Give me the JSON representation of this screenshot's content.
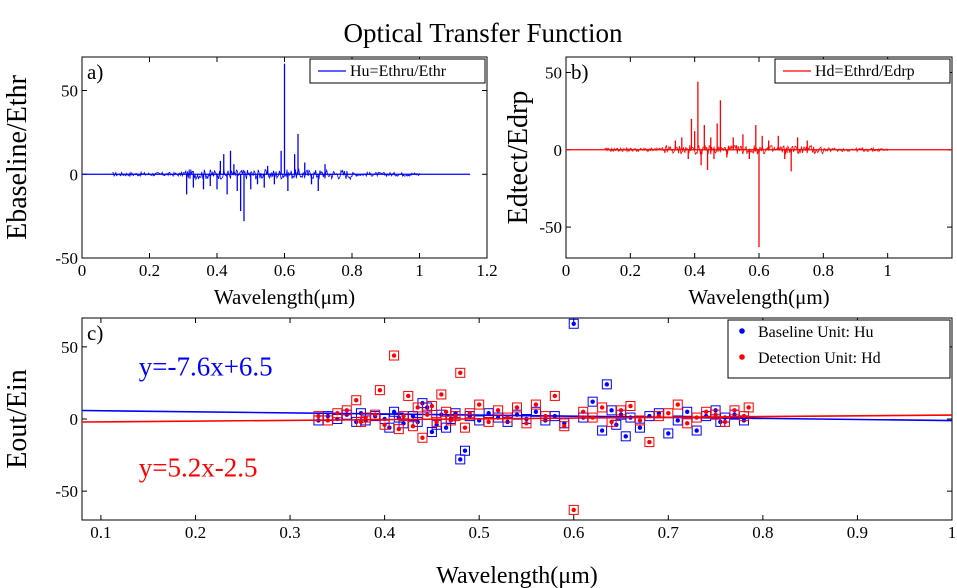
{
  "figure_title": "Optical Transfer Function",
  "chart_data": [
    {
      "id": "a",
      "type": "line",
      "panel_label": "a)",
      "xlabel": "Wavelength(μm)",
      "ylabel": "Ebaseline/Ethr",
      "xlim": [
        0,
        1.2
      ],
      "ylim": [
        -50,
        70
      ],
      "xticks": [
        "0",
        "0.2",
        "0.4",
        "0.6",
        "0.8",
        "1",
        "1.2"
      ],
      "yticks": [
        "-50",
        "0",
        "50"
      ],
      "legend": {
        "position": "top-right",
        "entries": [
          "Hu=Ethru/Ethr"
        ]
      },
      "color": "#0000ff",
      "baseline_x_range": [
        0,
        1.15
      ],
      "noise_x_range": [
        0.09,
        1.0
      ],
      "spikes": [
        {
          "x": 0.31,
          "y": -12
        },
        {
          "x": 0.33,
          "y": -8
        },
        {
          "x": 0.36,
          "y": -9
        },
        {
          "x": 0.38,
          "y": -7
        },
        {
          "x": 0.4,
          "y": -9
        },
        {
          "x": 0.41,
          "y": 8
        },
        {
          "x": 0.42,
          "y": 12
        },
        {
          "x": 0.43,
          "y": -12
        },
        {
          "x": 0.44,
          "y": 14
        },
        {
          "x": 0.45,
          "y": 6
        },
        {
          "x": 0.46,
          "y": -10
        },
        {
          "x": 0.47,
          "y": -22
        },
        {
          "x": 0.48,
          "y": -28
        },
        {
          "x": 0.5,
          "y": -9
        },
        {
          "x": 0.52,
          "y": -6
        },
        {
          "x": 0.54,
          "y": -8
        },
        {
          "x": 0.55,
          "y": 5
        },
        {
          "x": 0.57,
          "y": -6
        },
        {
          "x": 0.59,
          "y": 14
        },
        {
          "x": 0.6,
          "y": 66
        },
        {
          "x": 0.61,
          "y": -10
        },
        {
          "x": 0.63,
          "y": 12
        },
        {
          "x": 0.64,
          "y": 24
        },
        {
          "x": 0.66,
          "y": 7
        },
        {
          "x": 0.68,
          "y": -6
        },
        {
          "x": 0.7,
          "y": -10
        },
        {
          "x": 0.72,
          "y": 6
        }
      ]
    },
    {
      "id": "b",
      "type": "line",
      "panel_label": "b)",
      "xlabel": "Wavelength(μm)",
      "ylabel": "Edtect/Edrp",
      "xlim": [
        0,
        1.2
      ],
      "ylim": [
        -70,
        60
      ],
      "xticks": [
        "0",
        "0.2",
        "0.4",
        "0.6",
        "0.8",
        "1"
      ],
      "yticks": [
        "-50",
        "0",
        "50"
      ],
      "legend": {
        "position": "top-right",
        "entries": [
          "Hd=Ethrd/Edrp"
        ]
      },
      "color": "#ff0000",
      "baseline_x_range": [
        0,
        1.2
      ],
      "noise_x_range": [
        0.12,
        1.0
      ],
      "spikes": [
        {
          "x": 0.34,
          "y": 6
        },
        {
          "x": 0.36,
          "y": 8
        },
        {
          "x": 0.38,
          "y": -6
        },
        {
          "x": 0.39,
          "y": 20
        },
        {
          "x": 0.4,
          "y": 12
        },
        {
          "x": 0.41,
          "y": 44
        },
        {
          "x": 0.42,
          "y": -10
        },
        {
          "x": 0.43,
          "y": 16
        },
        {
          "x": 0.44,
          "y": -13
        },
        {
          "x": 0.45,
          "y": 8
        },
        {
          "x": 0.46,
          "y": -6
        },
        {
          "x": 0.47,
          "y": 17
        },
        {
          "x": 0.48,
          "y": 32
        },
        {
          "x": 0.5,
          "y": -5
        },
        {
          "x": 0.52,
          "y": 8
        },
        {
          "x": 0.55,
          "y": 10
        },
        {
          "x": 0.57,
          "y": -6
        },
        {
          "x": 0.59,
          "y": 16
        },
        {
          "x": 0.6,
          "y": -63
        },
        {
          "x": 0.61,
          "y": 9
        },
        {
          "x": 0.63,
          "y": 6
        },
        {
          "x": 0.66,
          "y": 9
        },
        {
          "x": 0.68,
          "y": -6
        },
        {
          "x": 0.7,
          "y": -14
        },
        {
          "x": 0.72,
          "y": 8
        },
        {
          "x": 0.75,
          "y": 6
        }
      ]
    },
    {
      "id": "c",
      "type": "scatter",
      "panel_label": "c)",
      "xlabel": "Wavelength(μm)",
      "ylabel": "Eout/Ein",
      "xlim": [
        0.08,
        1.0
      ],
      "ylim": [
        -70,
        70
      ],
      "xticks": [
        "0.1",
        "0.2",
        "0.3",
        "0.4",
        "0.5",
        "0.6",
        "0.7",
        "0.8",
        "0.9",
        "1"
      ],
      "yticks": [
        "-50",
        "0",
        "50"
      ],
      "legend": {
        "position": "top-right",
        "entries": [
          "Baseline Unit:   Hu",
          "Detection Unit:   Hd"
        ]
      },
      "series": [
        {
          "name": "Baseline Unit:   Hu",
          "color": "#0000ff",
          "fit": {
            "slope": -7.6,
            "intercept": 6.5,
            "label": "y=-7.6x+6.5"
          },
          "points": [
            {
              "x": 0.33,
              "y": -1
            },
            {
              "x": 0.34,
              "y": 2
            },
            {
              "x": 0.35,
              "y": 0
            },
            {
              "x": 0.36,
              "y": 3
            },
            {
              "x": 0.37,
              "y": -2
            },
            {
              "x": 0.375,
              "y": 4
            },
            {
              "x": 0.38,
              "y": -1
            },
            {
              "x": 0.39,
              "y": 2
            },
            {
              "x": 0.4,
              "y": 0
            },
            {
              "x": 0.405,
              "y": -6
            },
            {
              "x": 0.41,
              "y": 5
            },
            {
              "x": 0.415,
              "y": 1
            },
            {
              "x": 0.42,
              "y": -3
            },
            {
              "x": 0.43,
              "y": 2
            },
            {
              "x": 0.435,
              "y": -2
            },
            {
              "x": 0.44,
              "y": 11
            },
            {
              "x": 0.445,
              "y": 8
            },
            {
              "x": 0.45,
              "y": -9
            },
            {
              "x": 0.455,
              "y": -4
            },
            {
              "x": 0.46,
              "y": 3
            },
            {
              "x": 0.465,
              "y": -6
            },
            {
              "x": 0.47,
              "y": 0
            },
            {
              "x": 0.475,
              "y": 4
            },
            {
              "x": 0.48,
              "y": -28
            },
            {
              "x": 0.485,
              "y": -22
            },
            {
              "x": 0.49,
              "y": 2
            },
            {
              "x": 0.5,
              "y": -1
            },
            {
              "x": 0.51,
              "y": 4
            },
            {
              "x": 0.52,
              "y": 1
            },
            {
              "x": 0.53,
              "y": -2
            },
            {
              "x": 0.54,
              "y": 3
            },
            {
              "x": 0.55,
              "y": 0
            },
            {
              "x": 0.56,
              "y": 5
            },
            {
              "x": 0.57,
              "y": -1
            },
            {
              "x": 0.58,
              "y": 2
            },
            {
              "x": 0.59,
              "y": -3
            },
            {
              "x": 0.6,
              "y": 66
            },
            {
              "x": 0.61,
              "y": 1
            },
            {
              "x": 0.62,
              "y": 12
            },
            {
              "x": 0.63,
              "y": -8
            },
            {
              "x": 0.635,
              "y": 24
            },
            {
              "x": 0.64,
              "y": 6
            },
            {
              "x": 0.645,
              "y": -4
            },
            {
              "x": 0.65,
              "y": 3
            },
            {
              "x": 0.655,
              "y": -12
            },
            {
              "x": 0.66,
              "y": 1
            },
            {
              "x": 0.67,
              "y": -6
            },
            {
              "x": 0.68,
              "y": 2
            },
            {
              "x": 0.69,
              "y": 4
            },
            {
              "x": 0.7,
              "y": -10
            },
            {
              "x": 0.71,
              "y": -1
            },
            {
              "x": 0.72,
              "y": 5
            },
            {
              "x": 0.73,
              "y": -8
            },
            {
              "x": 0.74,
              "y": 2
            },
            {
              "x": 0.75,
              "y": 6
            },
            {
              "x": 0.755,
              "y": -2
            },
            {
              "x": 0.76,
              "y": 1
            },
            {
              "x": 0.77,
              "y": 3
            },
            {
              "x": 0.78,
              "y": -1
            }
          ]
        },
        {
          "name": "Detection Unit:   Hd",
          "color": "#ff0000",
          "fit": {
            "slope": 5.2,
            "intercept": -2.5,
            "label": "y=5.2x-2.5"
          },
          "points": [
            {
              "x": 0.33,
              "y": 2
            },
            {
              "x": 0.34,
              "y": -1
            },
            {
              "x": 0.35,
              "y": 4
            },
            {
              "x": 0.36,
              "y": 6
            },
            {
              "x": 0.37,
              "y": 13
            },
            {
              "x": 0.375,
              "y": -2
            },
            {
              "x": 0.38,
              "y": 1
            },
            {
              "x": 0.39,
              "y": 3
            },
            {
              "x": 0.395,
              "y": 20
            },
            {
              "x": 0.4,
              "y": -4
            },
            {
              "x": 0.41,
              "y": 44
            },
            {
              "x": 0.415,
              "y": -7
            },
            {
              "x": 0.42,
              "y": 2
            },
            {
              "x": 0.425,
              "y": 16
            },
            {
              "x": 0.43,
              "y": -5
            },
            {
              "x": 0.435,
              "y": 8
            },
            {
              "x": 0.44,
              "y": -13
            },
            {
              "x": 0.445,
              "y": 3
            },
            {
              "x": 0.45,
              "y": 9
            },
            {
              "x": 0.455,
              "y": -2
            },
            {
              "x": 0.46,
              "y": 17
            },
            {
              "x": 0.465,
              "y": 5
            },
            {
              "x": 0.47,
              "y": -1
            },
            {
              "x": 0.475,
              "y": 2
            },
            {
              "x": 0.48,
              "y": 32
            },
            {
              "x": 0.485,
              "y": -6
            },
            {
              "x": 0.49,
              "y": 4
            },
            {
              "x": 0.5,
              "y": 10
            },
            {
              "x": 0.51,
              "y": -2
            },
            {
              "x": 0.52,
              "y": 6
            },
            {
              "x": 0.53,
              "y": 1
            },
            {
              "x": 0.54,
              "y": 8
            },
            {
              "x": 0.55,
              "y": -3
            },
            {
              "x": 0.56,
              "y": 10
            },
            {
              "x": 0.57,
              "y": 2
            },
            {
              "x": 0.58,
              "y": 16
            },
            {
              "x": 0.59,
              "y": -5
            },
            {
              "x": 0.6,
              "y": -63
            },
            {
              "x": 0.61,
              "y": 5
            },
            {
              "x": 0.62,
              "y": 1
            },
            {
              "x": 0.63,
              "y": 8
            },
            {
              "x": 0.64,
              "y": -2
            },
            {
              "x": 0.65,
              "y": 6
            },
            {
              "x": 0.66,
              "y": 9
            },
            {
              "x": 0.67,
              "y": -1
            },
            {
              "x": 0.68,
              "y": -16
            },
            {
              "x": 0.69,
              "y": 2
            },
            {
              "x": 0.7,
              "y": 4
            },
            {
              "x": 0.71,
              "y": 10
            },
            {
              "x": 0.72,
              "y": -3
            },
            {
              "x": 0.73,
              "y": 1
            },
            {
              "x": 0.74,
              "y": 5
            },
            {
              "x": 0.75,
              "y": 3
            },
            {
              "x": 0.76,
              "y": -2
            },
            {
              "x": 0.77,
              "y": 6
            },
            {
              "x": 0.78,
              "y": 2
            },
            {
              "x": 0.785,
              "y": 8
            }
          ]
        }
      ]
    }
  ]
}
